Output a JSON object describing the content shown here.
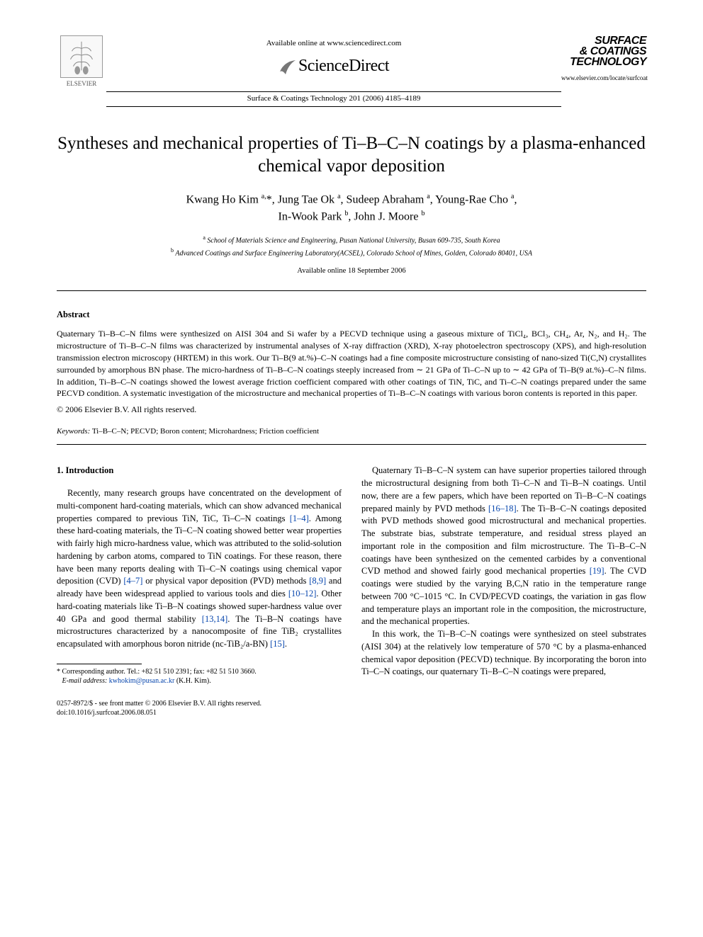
{
  "header": {
    "available_online": "Available online at www.sciencedirect.com",
    "sciencedirect": "ScienceDirect",
    "journal_citation": "Surface & Coatings Technology 201 (2006) 4185–4189",
    "publisher_name": "ELSEVIER",
    "journal_logo_l1": "SURFACE",
    "journal_logo_l2": "& COATINGS",
    "journal_logo_l3": "TECHNOLOGY",
    "journal_url": "www.elsevier.com/locate/surfcoat"
  },
  "title": "Syntheses and mechanical properties of Ti–B–C–N coatings by a plasma-enhanced chemical vapor deposition",
  "authors_html": "Kwang Ho Kim <sup>a,</sup>*, Jung Tae Ok <sup>a</sup>, Sudeep Abraham <sup>a</sup>, Young-Rae Cho <sup>a</sup>,<br>In-Wook Park <sup>b</sup>, John J. Moore <sup>b</sup>",
  "affiliations": {
    "a": "School of Materials Science and Engineering, Pusan National University, Busan 609-735, South Korea",
    "b": "Advanced Coatings and Surface Engineering Laboratory(ACSEL), Colorado School of Mines, Golden, Colorado 80401, USA"
  },
  "available_date": "Available online 18 September 2006",
  "abstract": {
    "heading": "Abstract",
    "body": "Quaternary Ti–B–C–N films were synthesized on AISI 304 and Si wafer by a PECVD technique using a gaseous mixture of TiCl₄, BCl₃, CH₄, Ar, N₂, and H₂. The microstructure of Ti–B–C–N films was characterized by instrumental analyses of X-ray diffraction (XRD), X-ray photoelectron spectroscopy (XPS), and high-resolution transmission electron microscopy (HRTEM) in this work. Our Ti–B(9 at.%)–C–N coatings had a fine composite microstructure consisting of nano-sized Ti(C,N) crystallites surrounded by amorphous BN phase. The micro-hardness of Ti–B–C–N coatings steeply increased from ∼ 21 GPa of Ti–C–N up to ∼ 42 GPa of Ti–B(9 at.%)–C–N films. In addition, Ti–B–C–N coatings showed the lowest average friction coefficient compared with other coatings of TiN, TiC, and Ti–C–N coatings prepared under the same PECVD condition. A systematic investigation of the microstructure and mechanical properties of Ti–B–C–N coatings with various boron contents is reported in this paper.",
    "copyright": "© 2006 Elsevier B.V. All rights reserved."
  },
  "keywords": {
    "label": "Keywords:",
    "text": " Ti–B–C–N; PECVD; Boron content; Microhardness; Friction coefficient"
  },
  "intro": {
    "heading": "1. Introduction",
    "p1_a": "Recently, many research groups have concentrated on the development of multi-component hard-coating materials, which can show advanced mechanical properties compared to previous TiN, TiC, Ti–C–N coatings ",
    "ref1": "[1–4]",
    "p1_b": ". Among these hard-coating materials, the Ti–C–N coating showed better wear properties with fairly high micro-hardness value, which was attributed to the solid-solution hardening by carbon atoms, compared to TiN coatings. For these reason, there have been many reports dealing with Ti–C–N coatings using chemical vapor deposition (CVD) ",
    "ref2": "[4–7]",
    "p1_c": " or physical vapor deposition (PVD) methods ",
    "ref3": "[8,9]",
    "p1_d": " and already have been widespread applied to various tools and dies ",
    "ref4": "[10–12]",
    "p1_e": ". Other hard-coating materials like Ti–B–N coatings showed super-hardness value over 40 GPa and good thermal stability ",
    "ref5": "[13,14]",
    "p1_f": ". The Ti–B–N coatings have microstructures characterized by a nanocomposite of fine TiB₂ crystallites encapsulated with amorphous boron nitride (nc-TiB₂/a-BN) ",
    "ref6": "[15]",
    "p1_g": ".",
    "p2_a": "Quaternary Ti–B–C–N system can have superior properties tailored through the microstructural designing from both Ti–C–N and Ti–B–N coatings. Until now, there are a few papers, which have been reported on Ti–B–C–N coatings prepared mainly by PVD methods ",
    "ref7": "[16–18]",
    "p2_b": ". The Ti–B–C–N coatings deposited with PVD methods showed good microstructural and mechanical properties. The substrate bias, substrate temperature, and residual stress played an important role in the composition and film microstructure. The Ti–B–C–N coatings have been synthesized on the cemented carbides by a conventional CVD method and showed fairly good mechanical properties ",
    "ref8": "[19]",
    "p2_c": ". The CVD coatings were studied by the varying B,C,N ratio in the temperature range between 700 °C–1015 °C. In CVD/PECVD coatings, the variation in gas flow and temperature plays an important role in the composition, the microstructure, and the mechanical properties.",
    "p3": "In this work, the Ti–B–C–N coatings were synthesized on steel substrates (AISI 304) at the relatively low temperature of 570 °C by a plasma-enhanced chemical vapor deposition (PECVD) technique. By incorporating the boron into Ti–C–N coatings, our quaternary Ti–B–C–N coatings were prepared,"
  },
  "footnote": {
    "corr": "* Corresponding author. Tel.: +82 51 510 2391; fax: +82 51 510 3660.",
    "email_label": "E-mail address:",
    "email": "kwhokim@pusan.ac.kr",
    "email_tail": " (K.H. Kim)."
  },
  "bottom": {
    "line1": "0257-8972/$ - see front matter © 2006 Elsevier B.V. All rights reserved.",
    "line2": "doi:10.1016/j.surfcoat.2006.08.051"
  },
  "colors": {
    "link": "#0645ad",
    "text": "#000000",
    "bg": "#ffffff"
  }
}
